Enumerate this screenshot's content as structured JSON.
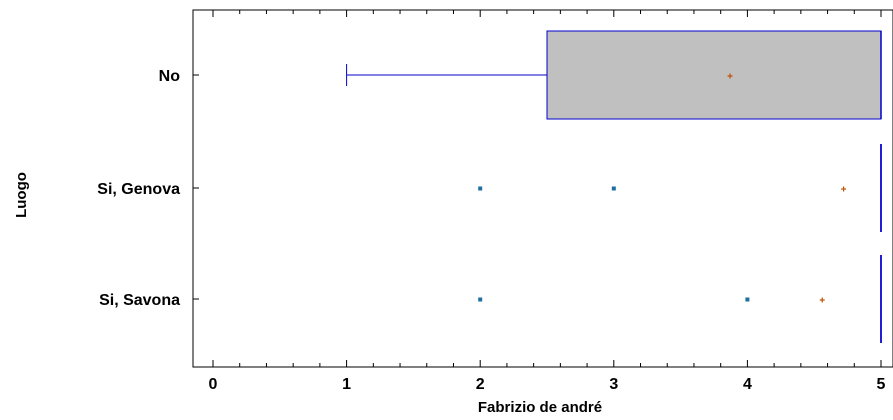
{
  "chart_data": {
    "type": "boxplot",
    "orientation": "horizontal",
    "title": "",
    "xlabel": "Fabrizio de andré",
    "ylabel": "Luogo",
    "xlim": [
      0,
      5
    ],
    "xticks": [
      0,
      1,
      2,
      3,
      4,
      5
    ],
    "xtick_labels": [
      "0",
      "1",
      "2",
      "3",
      "4",
      "5"
    ],
    "grid": false,
    "legend": "none",
    "categories": [
      "No",
      "Si, Genova",
      "Si, Savona"
    ],
    "boxes": [
      {
        "category": "No",
        "whisker_low": 1,
        "q1": 2.5,
        "median": 5,
        "q3": 5,
        "whisker_high": 5,
        "mean": 3.87,
        "outliers": []
      },
      {
        "category": "Si, Genova",
        "whisker_low": 5,
        "q1": 5,
        "median": 5,
        "q3": 5,
        "whisker_high": 5,
        "mean": 4.72,
        "outliers": [
          2,
          3
        ]
      },
      {
        "category": "Si, Savona",
        "whisker_low": 5,
        "q1": 5,
        "median": 5,
        "q3": 5,
        "whisker_high": 5,
        "mean": 4.56,
        "outliers": [
          2,
          4
        ]
      }
    ],
    "colors": {
      "box_fill": "#c0c0c0",
      "box_line": "#0000cc",
      "mean_marker": "#c05000",
      "outlier_marker": "#1f6f9f"
    }
  }
}
